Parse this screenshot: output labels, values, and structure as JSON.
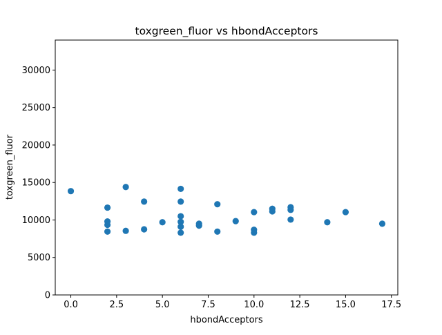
{
  "chart_data": {
    "type": "scatter",
    "title": "toxgreen_fluor vs hbondAcceptors",
    "xlabel": "hbondAcceptors",
    "ylabel": "toxgreen_fluor",
    "xlim": [
      -0.85,
      17.85
    ],
    "ylim": [
      0,
      34000
    ],
    "xticks": [
      0,
      2.5,
      5,
      7.5,
      10,
      12.5,
      15,
      17.5
    ],
    "xtick_labels": [
      "0.0",
      "2.5",
      "5.0",
      "7.5",
      "10.0",
      "12.5",
      "15.0",
      "17.5"
    ],
    "yticks": [
      0,
      5000,
      10000,
      15000,
      20000,
      25000,
      30000
    ],
    "ytick_labels": [
      "0",
      "5000",
      "10000",
      "15000",
      "20000",
      "25000",
      "30000"
    ],
    "grid": false,
    "marker_color": "#1f77b4",
    "points": [
      {
        "x": 0,
        "y": 13850
      },
      {
        "x": 2,
        "y": 11650
      },
      {
        "x": 2,
        "y": 9800
      },
      {
        "x": 2,
        "y": 9350
      },
      {
        "x": 2,
        "y": 8450
      },
      {
        "x": 3,
        "y": 14400
      },
      {
        "x": 3,
        "y": 8550
      },
      {
        "x": 4,
        "y": 12450
      },
      {
        "x": 4,
        "y": 8750
      },
      {
        "x": 5,
        "y": 9700
      },
      {
        "x": 6,
        "y": 14150
      },
      {
        "x": 6,
        "y": 12450
      },
      {
        "x": 6,
        "y": 10500
      },
      {
        "x": 6,
        "y": 9750
      },
      {
        "x": 6,
        "y": 9100
      },
      {
        "x": 6,
        "y": 8300
      },
      {
        "x": 7,
        "y": 9500
      },
      {
        "x": 7,
        "y": 9250
      },
      {
        "x": 8,
        "y": 12100
      },
      {
        "x": 8,
        "y": 8450
      },
      {
        "x": 9,
        "y": 9850
      },
      {
        "x": 10,
        "y": 11050
      },
      {
        "x": 10,
        "y": 8700
      },
      {
        "x": 10,
        "y": 8300
      },
      {
        "x": 11,
        "y": 11500
      },
      {
        "x": 11,
        "y": 11150
      },
      {
        "x": 12,
        "y": 11700
      },
      {
        "x": 12,
        "y": 11350
      },
      {
        "x": 12,
        "y": 10050
      },
      {
        "x": 14,
        "y": 9700
      },
      {
        "x": 15,
        "y": 11050
      },
      {
        "x": 17,
        "y": 9500
      }
    ]
  }
}
